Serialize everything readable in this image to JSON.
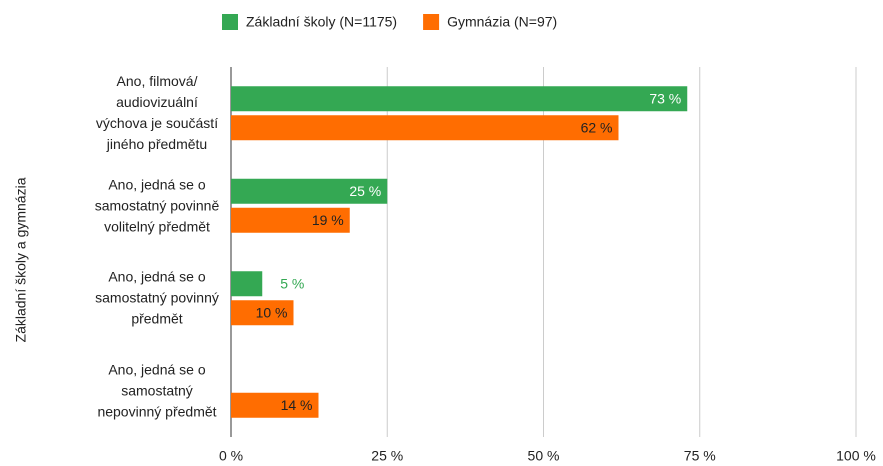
{
  "chart_data": {
    "type": "bar",
    "orientation": "horizontal",
    "y_label": "Základní školy a gymnázia",
    "categories": [
      "Ano, filmová/ audiovizuální výchova je součástí jiného předmětu",
      "Ano, jedná se o samostatný povinně volitelný předmět",
      "Ano, jedná se o samostatný povinný předmět",
      "Ano, jedná se o samostatný nepovinný předmět"
    ],
    "series": [
      {
        "name": "Základní školy (N=1175)",
        "color": "#34a853",
        "values": [
          73,
          25,
          5,
          null
        ],
        "value_labels": [
          "73 %",
          "25 %",
          "5 %",
          null
        ]
      },
      {
        "name": "Gymnázia (N=97)",
        "color": "#ff6d01",
        "values": [
          62,
          19,
          10,
          14
        ],
        "value_labels": [
          "62 %",
          "19 %",
          "10 %",
          "14 %"
        ]
      }
    ],
    "xlim": [
      0,
      100
    ],
    "xticks": [
      {
        "value": 0,
        "label": "0 %"
      },
      {
        "value": 25,
        "label": "25 %"
      },
      {
        "value": 50,
        "label": "50 %"
      },
      {
        "value": 75,
        "label": "75 %"
      },
      {
        "value": 100,
        "label": "100 %"
      }
    ],
    "grid": true,
    "legend": "top"
  }
}
